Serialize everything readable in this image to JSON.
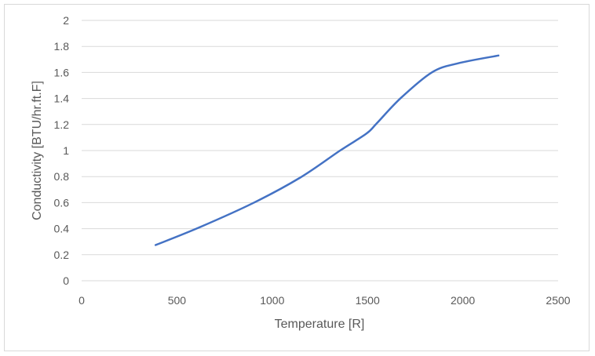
{
  "chart_data": {
    "type": "line",
    "title": "",
    "xlabel": "Temperature [R]",
    "ylabel": "Conductivity [BTU/hr.ft.F]",
    "xlim": [
      0,
      2500
    ],
    "ylim": [
      0,
      2
    ],
    "xticks": [
      0,
      500,
      1000,
      1500,
      2000,
      2500
    ],
    "yticks": [
      0,
      0.2,
      0.4,
      0.6,
      0.8,
      1,
      1.2,
      1.4,
      1.6,
      1.8,
      2
    ],
    "grid": "horizontal",
    "legend": "none",
    "series": [
      {
        "name": "Conductivity",
        "color": "#4472c4",
        "x": [
          388,
          615,
          903,
          1150,
          1356,
          1494,
          1549,
          1672,
          1837,
          1974,
          2187
        ],
        "y": [
          0.274,
          0.408,
          0.599,
          0.795,
          1.0,
          1.13,
          1.21,
          1.4,
          1.6,
          1.67,
          1.73
        ]
      }
    ]
  }
}
